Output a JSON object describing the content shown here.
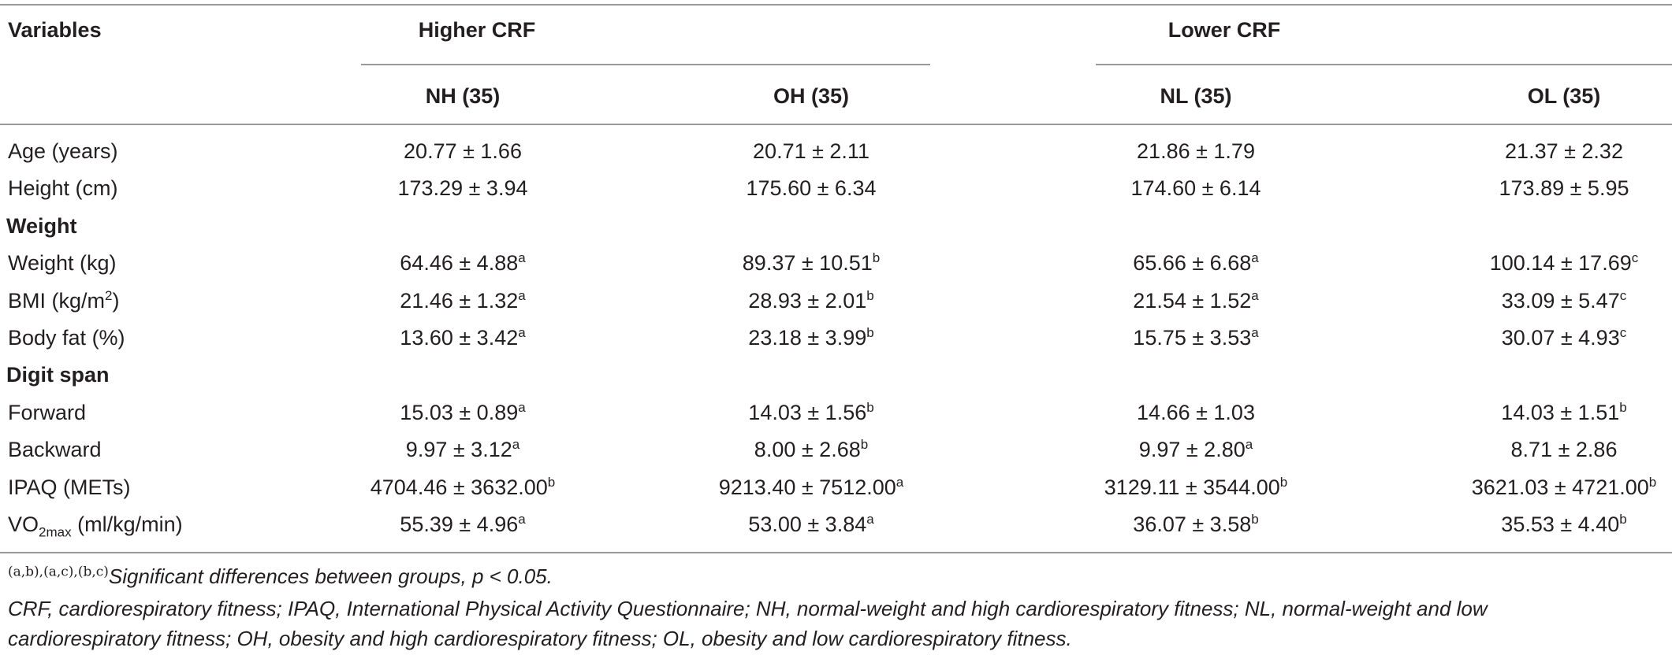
{
  "header": {
    "variables": "Variables",
    "higher_group": "Higher CRF",
    "lower_group": "Lower CRF",
    "columns": [
      "NH (35)",
      "OH (35)",
      "NL (35)",
      "OL (35)"
    ]
  },
  "rows": [
    {
      "label": "Age (years)",
      "cells": [
        {
          "v": "20.77 ± 1.66",
          "s": ""
        },
        {
          "v": "20.71 ± 2.11",
          "s": ""
        },
        {
          "v": "21.86 ± 1.79",
          "s": ""
        },
        {
          "v": "21.37 ± 2.32",
          "s": ""
        }
      ]
    },
    {
      "label": "Height (cm)",
      "cells": [
        {
          "v": "173.29 ± 3.94",
          "s": ""
        },
        {
          "v": "175.60 ± 6.34",
          "s": ""
        },
        {
          "v": "174.60 ± 6.14",
          "s": ""
        },
        {
          "v": "173.89 ± 5.95",
          "s": ""
        }
      ]
    },
    {
      "section": "Weight"
    },
    {
      "label": "Weight (kg)",
      "cells": [
        {
          "v": "64.46 ± 4.88",
          "s": "a"
        },
        {
          "v": "89.37 ± 10.51",
          "s": "b"
        },
        {
          "v": "65.66 ± 6.68",
          "s": "a"
        },
        {
          "v": "100.14 ± 17.69",
          "s": "c"
        }
      ]
    },
    {
      "label": "BMI (kg/m",
      "label_sup": "2",
      "label_tail": ")",
      "cells": [
        {
          "v": "21.46 ± 1.32",
          "s": "a"
        },
        {
          "v": "28.93 ± 2.01",
          "s": "b"
        },
        {
          "v": "21.54 ± 1.52",
          "s": "a"
        },
        {
          "v": "33.09 ± 5.47",
          "s": "c"
        }
      ]
    },
    {
      "label": "Body fat (%)",
      "cells": [
        {
          "v": "13.60 ± 3.42",
          "s": "a"
        },
        {
          "v": "23.18 ± 3.99",
          "s": "b"
        },
        {
          "v": "15.75 ± 3.53",
          "s": "a"
        },
        {
          "v": "30.07 ± 4.93",
          "s": "c"
        }
      ]
    },
    {
      "section": "Digit span"
    },
    {
      "label": "Forward",
      "cells": [
        {
          "v": "15.03 ± 0.89",
          "s": "a"
        },
        {
          "v": "14.03 ± 1.56",
          "s": "b"
        },
        {
          "v": "14.66 ± 1.03",
          "s": ""
        },
        {
          "v": "14.03 ± 1.51",
          "s": "b"
        }
      ]
    },
    {
      "label": "Backward",
      "cells": [
        {
          "v": "9.97 ± 3.12",
          "s": "a"
        },
        {
          "v": "8.00 ± 2.68",
          "s": "b"
        },
        {
          "v": "9.97 ± 2.80",
          "s": "a"
        },
        {
          "v": "8.71 ± 2.86",
          "s": ""
        }
      ]
    },
    {
      "label": "IPAQ (METs)",
      "cells": [
        {
          "v": "4704.46 ± 3632.00",
          "s": "b"
        },
        {
          "v": "9213.40 ± 7512.00",
          "s": "a"
        },
        {
          "v": "3129.11 ± 3544.00",
          "s": "b"
        },
        {
          "v": "3621.03 ± 4721.00",
          "s": "b"
        }
      ]
    },
    {
      "label": "VO",
      "label_sub": "2max",
      "label_tail": " (ml/kg/min)",
      "cells": [
        {
          "v": "55.39 ± 4.96",
          "s": "a"
        },
        {
          "v": "53.00 ± 3.84",
          "s": "a"
        },
        {
          "v": "36.07 ± 3.58",
          "s": "b"
        },
        {
          "v": "35.53 ± 4.40",
          "s": "b"
        }
      ]
    }
  ],
  "footnotes": {
    "markers": "(a,b),(a,c),(b,c)",
    "significance": "Significant differences between groups, p < 0.05.",
    "abbrev_line1": "CRF, cardiorespiratory fitness; IPAQ, International Physical Activity Questionnaire; NH, normal-weight and high cardiorespiratory fitness; NL, normal-weight and low",
    "abbrev_line2": "cardiorespiratory fitness; OH, obesity and high cardiorespiratory fitness; OL, obesity and low cardiorespiratory fitness."
  }
}
